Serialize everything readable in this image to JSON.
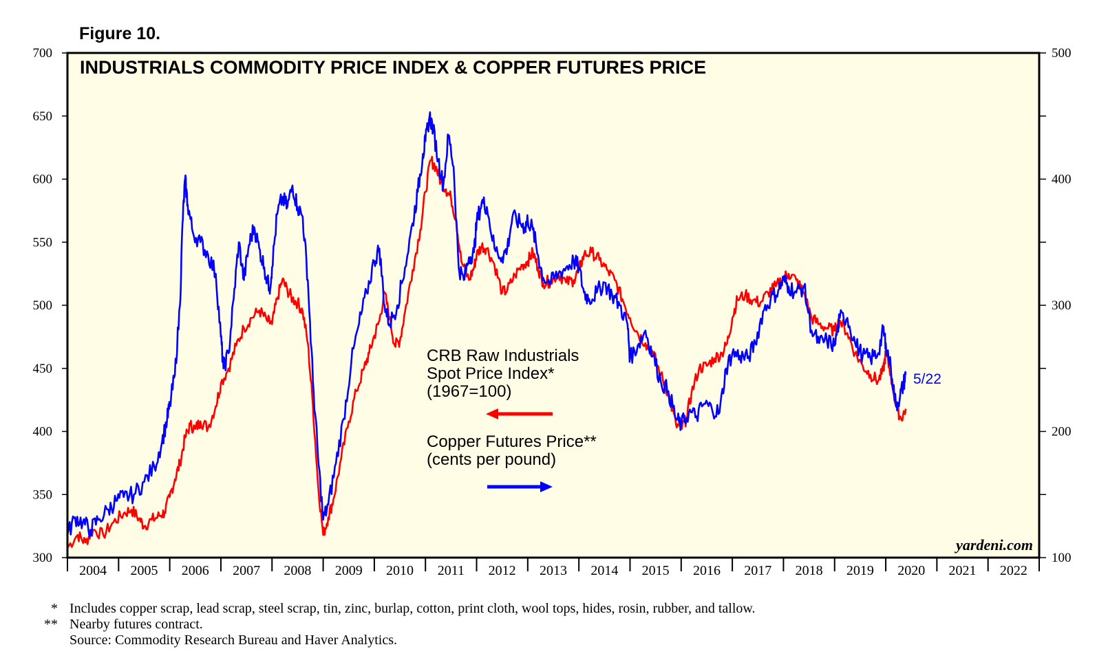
{
  "figure_label": "Figure 10.",
  "chart_data": {
    "type": "line",
    "title": "INDUSTRIALS COMMODITY PRICE INDEX & COPPER FUTURES PRICE",
    "x_range": [
      2004.0,
      2023.0
    ],
    "x_tick_labels": [
      "2004",
      "2005",
      "2006",
      "2007",
      "2008",
      "2009",
      "2010",
      "2011",
      "2012",
      "2013",
      "2014",
      "2015",
      "2016",
      "2017",
      "2018",
      "2019",
      "2020",
      "2021",
      "2022"
    ],
    "y_left": {
      "range": [
        300,
        700
      ],
      "ticks": [
        300,
        350,
        400,
        450,
        500,
        550,
        600,
        650,
        700
      ]
    },
    "y_right": {
      "range": [
        100,
        500
      ],
      "ticks": [
        100,
        200,
        300,
        400,
        500
      ]
    },
    "grid": false,
    "series": [
      {
        "name": "CRB Raw Industrials Spot Price Index* (1967=100)",
        "axis": "left",
        "color": "#ff0000",
        "points": [
          [
            2004.0,
            308
          ],
          [
            2004.2,
            318
          ],
          [
            2004.35,
            312
          ],
          [
            2004.5,
            322
          ],
          [
            2004.7,
            318
          ],
          [
            2004.9,
            328
          ],
          [
            2005.1,
            335
          ],
          [
            2005.25,
            338
          ],
          [
            2005.4,
            331
          ],
          [
            2005.5,
            325
          ],
          [
            2005.65,
            330
          ],
          [
            2005.8,
            333
          ],
          [
            2005.9,
            336
          ],
          [
            2006.0,
            348
          ],
          [
            2006.1,
            362
          ],
          [
            2006.2,
            375
          ],
          [
            2006.3,
            395
          ],
          [
            2006.4,
            405
          ],
          [
            2006.5,
            402
          ],
          [
            2006.6,
            408
          ],
          [
            2006.75,
            403
          ],
          [
            2006.9,
            420
          ],
          [
            2007.0,
            438
          ],
          [
            2007.15,
            450
          ],
          [
            2007.3,
            468
          ],
          [
            2007.45,
            482
          ],
          [
            2007.6,
            490
          ],
          [
            2007.75,
            496
          ],
          [
            2007.9,
            488
          ],
          [
            2008.0,
            485
          ],
          [
            2008.1,
            505
          ],
          [
            2008.2,
            520
          ],
          [
            2008.3,
            512
          ],
          [
            2008.4,
            505
          ],
          [
            2008.5,
            502
          ],
          [
            2008.6,
            495
          ],
          [
            2008.7,
            470
          ],
          [
            2008.8,
            420
          ],
          [
            2008.9,
            358
          ],
          [
            2009.0,
            318
          ],
          [
            2009.1,
            332
          ],
          [
            2009.2,
            346
          ],
          [
            2009.35,
            378
          ],
          [
            2009.5,
            408
          ],
          [
            2009.65,
            432
          ],
          [
            2009.8,
            450
          ],
          [
            2009.9,
            462
          ],
          [
            2010.0,
            476
          ],
          [
            2010.1,
            488
          ],
          [
            2010.2,
            510
          ],
          [
            2010.3,
            490
          ],
          [
            2010.4,
            468
          ],
          [
            2010.5,
            472
          ],
          [
            2010.6,
            495
          ],
          [
            2010.75,
            528
          ],
          [
            2010.9,
            560
          ],
          [
            2011.0,
            590
          ],
          [
            2011.1,
            615
          ],
          [
            2011.2,
            610
          ],
          [
            2011.3,
            598
          ],
          [
            2011.4,
            592
          ],
          [
            2011.5,
            585
          ],
          [
            2011.6,
            567
          ],
          [
            2011.7,
            535
          ],
          [
            2011.85,
            520
          ],
          [
            2011.95,
            530
          ],
          [
            2012.0,
            540
          ],
          [
            2012.1,
            547
          ],
          [
            2012.2,
            545
          ],
          [
            2012.35,
            532
          ],
          [
            2012.5,
            510
          ],
          [
            2012.6,
            512
          ],
          [
            2012.75,
            524
          ],
          [
            2012.9,
            532
          ],
          [
            2013.0,
            535
          ],
          [
            2013.1,
            542
          ],
          [
            2013.2,
            530
          ],
          [
            2013.3,
            518
          ],
          [
            2013.45,
            519
          ],
          [
            2013.6,
            525
          ],
          [
            2013.75,
            518
          ],
          [
            2013.9,
            520
          ],
          [
            2014.0,
            528
          ],
          [
            2014.1,
            540
          ],
          [
            2014.25,
            542
          ],
          [
            2014.4,
            536
          ],
          [
            2014.55,
            528
          ],
          [
            2014.7,
            520
          ],
          [
            2014.85,
            505
          ],
          [
            2015.0,
            490
          ],
          [
            2015.15,
            478
          ],
          [
            2015.3,
            470
          ],
          [
            2015.45,
            462
          ],
          [
            2015.6,
            445
          ],
          [
            2015.75,
            430
          ],
          [
            2015.9,
            405
          ],
          [
            2016.0,
            402
          ],
          [
            2016.1,
            410
          ],
          [
            2016.2,
            430
          ],
          [
            2016.35,
            450
          ],
          [
            2016.5,
            452
          ],
          [
            2016.65,
            458
          ],
          [
            2016.8,
            462
          ],
          [
            2016.9,
            470
          ],
          [
            2017.0,
            490
          ],
          [
            2017.1,
            505
          ],
          [
            2017.25,
            508
          ],
          [
            2017.4,
            504
          ],
          [
            2017.55,
            502
          ],
          [
            2017.7,
            510
          ],
          [
            2017.85,
            515
          ],
          [
            2018.0,
            522
          ],
          [
            2018.1,
            525
          ],
          [
            2018.25,
            520
          ],
          [
            2018.4,
            510
          ],
          [
            2018.55,
            490
          ],
          [
            2018.7,
            485
          ],
          [
            2018.85,
            482
          ],
          [
            2019.0,
            480
          ],
          [
            2019.1,
            488
          ],
          [
            2019.25,
            478
          ],
          [
            2019.4,
            462
          ],
          [
            2019.55,
            452
          ],
          [
            2019.7,
            445
          ],
          [
            2019.85,
            440
          ],
          [
            2019.95,
            448
          ],
          [
            2020.0,
            462
          ],
          [
            2020.1,
            445
          ],
          [
            2020.2,
            420
          ],
          [
            2020.3,
            410
          ],
          [
            2020.39,
            418
          ]
        ]
      },
      {
        "name": "Copper Futures Price** (cents per pound)",
        "axis": "right",
        "color": "#0000ff",
        "points": [
          [
            2004.0,
            118
          ],
          [
            2004.15,
            132
          ],
          [
            2004.3,
            128
          ],
          [
            2004.45,
            122
          ],
          [
            2004.6,
            130
          ],
          [
            2004.8,
            138
          ],
          [
            2004.95,
            145
          ],
          [
            2005.1,
            148
          ],
          [
            2005.3,
            150
          ],
          [
            2005.5,
            160
          ],
          [
            2005.7,
            172
          ],
          [
            2005.85,
            192
          ],
          [
            2005.95,
            210
          ],
          [
            2006.0,
            220
          ],
          [
            2006.1,
            245
          ],
          [
            2006.2,
            300
          ],
          [
            2006.25,
            365
          ],
          [
            2006.3,
            400
          ],
          [
            2006.35,
            380
          ],
          [
            2006.45,
            358
          ],
          [
            2006.6,
            350
          ],
          [
            2006.75,
            340
          ],
          [
            2006.9,
            325
          ],
          [
            2007.0,
            275
          ],
          [
            2007.05,
            250
          ],
          [
            2007.15,
            262
          ],
          [
            2007.25,
            305
          ],
          [
            2007.35,
            350
          ],
          [
            2007.45,
            320
          ],
          [
            2007.55,
            348
          ],
          [
            2007.65,
            362
          ],
          [
            2007.75,
            345
          ],
          [
            2007.85,
            330
          ],
          [
            2007.95,
            312
          ],
          [
            2008.0,
            330
          ],
          [
            2008.1,
            372
          ],
          [
            2008.2,
            385
          ],
          [
            2008.3,
            378
          ],
          [
            2008.4,
            395
          ],
          [
            2008.5,
            378
          ],
          [
            2008.6,
            370
          ],
          [
            2008.7,
            320
          ],
          [
            2008.8,
            240
          ],
          [
            2008.9,
            180
          ],
          [
            2009.0,
            130
          ],
          [
            2009.1,
            142
          ],
          [
            2009.25,
            175
          ],
          [
            2009.4,
            210
          ],
          [
            2009.55,
            255
          ],
          [
            2009.7,
            285
          ],
          [
            2009.85,
            310
          ],
          [
            2010.0,
            335
          ],
          [
            2010.1,
            345
          ],
          [
            2010.2,
            300
          ],
          [
            2010.3,
            285
          ],
          [
            2010.45,
            300
          ],
          [
            2010.6,
            330
          ],
          [
            2010.75,
            365
          ],
          [
            2010.85,
            390
          ],
          [
            2010.95,
            420
          ],
          [
            2011.0,
            430
          ],
          [
            2011.08,
            450
          ],
          [
            2011.15,
            440
          ],
          [
            2011.25,
            415
          ],
          [
            2011.35,
            395
          ],
          [
            2011.45,
            435
          ],
          [
            2011.55,
            410
          ],
          [
            2011.65,
            330
          ],
          [
            2011.75,
            320
          ],
          [
            2011.85,
            338
          ],
          [
            2011.95,
            342
          ],
          [
            2012.0,
            365
          ],
          [
            2012.1,
            382
          ],
          [
            2012.2,
            378
          ],
          [
            2012.35,
            345
          ],
          [
            2012.5,
            338
          ],
          [
            2012.6,
            345
          ],
          [
            2012.7,
            370
          ],
          [
            2012.85,
            365
          ],
          [
            2012.95,
            362
          ],
          [
            2013.0,
            368
          ],
          [
            2013.1,
            360
          ],
          [
            2013.2,
            340
          ],
          [
            2013.3,
            322
          ],
          [
            2013.45,
            318
          ],
          [
            2013.6,
            325
          ],
          [
            2013.75,
            330
          ],
          [
            2013.9,
            335
          ],
          [
            2014.0,
            330
          ],
          [
            2014.1,
            310
          ],
          [
            2014.2,
            305
          ],
          [
            2014.35,
            310
          ],
          [
            2014.5,
            318
          ],
          [
            2014.65,
            308
          ],
          [
            2014.8,
            300
          ],
          [
            2014.95,
            285
          ],
          [
            2015.0,
            258
          ],
          [
            2015.15,
            268
          ],
          [
            2015.3,
            280
          ],
          [
            2015.45,
            260
          ],
          [
            2015.6,
            240
          ],
          [
            2015.75,
            232
          ],
          [
            2015.9,
            210
          ],
          [
            2016.0,
            205
          ],
          [
            2016.15,
            215
          ],
          [
            2016.3,
            212
          ],
          [
            2016.45,
            222
          ],
          [
            2016.6,
            218
          ],
          [
            2016.75,
            215
          ],
          [
            2016.88,
            250
          ],
          [
            2017.0,
            262
          ],
          [
            2017.15,
            260
          ],
          [
            2017.3,
            258
          ],
          [
            2017.45,
            270
          ],
          [
            2017.6,
            295
          ],
          [
            2017.75,
            305
          ],
          [
            2017.9,
            312
          ],
          [
            2018.0,
            320
          ],
          [
            2018.1,
            315
          ],
          [
            2018.25,
            310
          ],
          [
            2018.4,
            315
          ],
          [
            2018.55,
            280
          ],
          [
            2018.7,
            270
          ],
          [
            2018.85,
            272
          ],
          [
            2019.0,
            268
          ],
          [
            2019.1,
            290
          ],
          [
            2019.25,
            290
          ],
          [
            2019.4,
            270
          ],
          [
            2019.55,
            260
          ],
          [
            2019.7,
            258
          ],
          [
            2019.85,
            262
          ],
          [
            2019.95,
            280
          ],
          [
            2020.0,
            270
          ],
          [
            2020.1,
            250
          ],
          [
            2020.2,
            220
          ],
          [
            2020.28,
            228
          ],
          [
            2020.35,
            238
          ],
          [
            2020.39,
            245
          ]
        ]
      }
    ],
    "legend": {
      "series1_lines": [
        "CRB Raw Industrials",
        "Spot Price Index*",
        "(1967=100)"
      ],
      "series2_lines": [
        "Copper Futures Price**",
        "(cents per pound)"
      ]
    },
    "end_date_label": "5/22",
    "credit": "yardeni.com"
  },
  "footnotes": [
    {
      "marker": "*",
      "text": "Includes copper scrap, lead scrap, steel scrap, tin, zinc, burlap, cotton, print cloth, wool tops, hides, rosin, rubber, and tallow."
    },
    {
      "marker": "**",
      "text": "Nearby futures contract."
    },
    {
      "marker": "",
      "text": "Source: Commodity Research Bureau and Haver Analytics."
    }
  ],
  "colors": {
    "plot_background": "#fffde6",
    "series1": "#ff0000",
    "series2": "#0000ff"
  }
}
